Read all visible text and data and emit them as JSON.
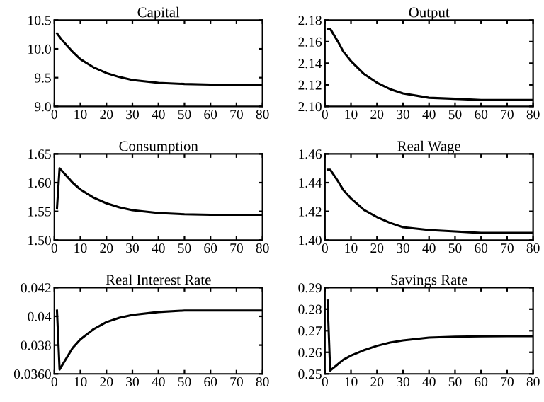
{
  "chart_data": [
    {
      "type": "line",
      "title": "Capital",
      "x": [
        1,
        3,
        5,
        7,
        10,
        15,
        20,
        25,
        30,
        40,
        50,
        60,
        70,
        80
      ],
      "series": [
        {
          "color": "#000000",
          "values": [
            10.27,
            10.15,
            10.05,
            9.95,
            9.82,
            9.68,
            9.58,
            9.51,
            9.46,
            9.41,
            9.39,
            9.38,
            9.37,
            9.37
          ]
        }
      ],
      "xlim": [
        0,
        80
      ],
      "xticks": [
        0,
        10,
        20,
        30,
        40,
        50,
        60,
        70,
        80
      ],
      "ylim": [
        9.0,
        10.5
      ],
      "yticks": [
        {
          "value": 9.0,
          "label": "9.0"
        },
        {
          "value": 9.5,
          "label": "9.5"
        },
        {
          "value": 10.0,
          "label": "10.0"
        },
        {
          "value": 10.5,
          "label": "10.5"
        }
      ],
      "grid": false,
      "marker": "none",
      "line_style": "solid"
    },
    {
      "type": "line",
      "title": "Output",
      "x": [
        1,
        2,
        5,
        7,
        10,
        15,
        20,
        25,
        30,
        40,
        50,
        60,
        70,
        80
      ],
      "series": [
        {
          "color": "#000000",
          "values": [
            2.172,
            2.172,
            2.16,
            2.151,
            2.142,
            2.13,
            2.122,
            2.116,
            2.112,
            2.108,
            2.107,
            2.106,
            2.106,
            2.106
          ]
        }
      ],
      "xlim": [
        0,
        80
      ],
      "xticks": [
        0,
        10,
        20,
        30,
        40,
        50,
        60,
        70,
        80
      ],
      "ylim": [
        2.1,
        2.18
      ],
      "yticks": [
        {
          "value": 2.1,
          "label": "2.10"
        },
        {
          "value": 2.12,
          "label": "2.12"
        },
        {
          "value": 2.14,
          "label": "2.14"
        },
        {
          "value": 2.16,
          "label": "2.16"
        },
        {
          "value": 2.18,
          "label": "2.18"
        }
      ],
      "grid": false,
      "marker": "none",
      "line_style": "solid"
    },
    {
      "type": "line",
      "title": "Consumption",
      "x": [
        1,
        2,
        5,
        7,
        10,
        15,
        20,
        25,
        30,
        40,
        50,
        60,
        70,
        80
      ],
      "series": [
        {
          "color": "#000000",
          "values": [
            1.555,
            1.625,
            1.61,
            1.6,
            1.588,
            1.574,
            1.564,
            1.557,
            1.552,
            1.547,
            1.545,
            1.544,
            1.544,
            1.544
          ]
        }
      ],
      "xlim": [
        0,
        80
      ],
      "xticks": [
        0,
        10,
        20,
        30,
        40,
        50,
        60,
        70,
        80
      ],
      "ylim": [
        1.5,
        1.65
      ],
      "yticks": [
        {
          "value": 1.5,
          "label": "1.50"
        },
        {
          "value": 1.55,
          "label": "1.55"
        },
        {
          "value": 1.6,
          "label": "1.60"
        },
        {
          "value": 1.65,
          "label": "1.65"
        }
      ],
      "grid": false,
      "marker": "none",
      "line_style": "solid"
    },
    {
      "type": "line",
      "title": "Real Wage",
      "x": [
        1,
        2,
        5,
        7,
        10,
        15,
        20,
        25,
        30,
        40,
        50,
        60,
        70,
        80
      ],
      "series": [
        {
          "color": "#000000",
          "values": [
            1.449,
            1.449,
            1.441,
            1.435,
            1.429,
            1.421,
            1.416,
            1.412,
            1.409,
            1.407,
            1.406,
            1.405,
            1.405,
            1.405
          ]
        }
      ],
      "xlim": [
        0,
        80
      ],
      "xticks": [
        0,
        10,
        20,
        30,
        40,
        50,
        60,
        70,
        80
      ],
      "ylim": [
        1.4,
        1.46
      ],
      "yticks": [
        {
          "value": 1.4,
          "label": "1.40"
        },
        {
          "value": 1.42,
          "label": "1.42"
        },
        {
          "value": 1.44,
          "label": "1.44"
        },
        {
          "value": 1.46,
          "label": "1.46"
        }
      ],
      "grid": false,
      "marker": "none",
      "line_style": "solid"
    },
    {
      "type": "line",
      "title": "Real Interest Rate",
      "x": [
        1,
        2,
        5,
        7,
        10,
        15,
        20,
        25,
        30,
        40,
        50,
        60,
        70,
        80
      ],
      "series": [
        {
          "color": "#000000",
          "values": [
            0.0404,
            0.0363,
            0.0372,
            0.0378,
            0.0384,
            0.0391,
            0.0396,
            0.0399,
            0.0401,
            0.0403,
            0.0404,
            0.0404,
            0.0404,
            0.0404
          ]
        }
      ],
      "xlim": [
        0,
        80
      ],
      "xticks": [
        0,
        10,
        20,
        30,
        40,
        50,
        60,
        70,
        80
      ],
      "ylim": [
        0.036,
        0.042
      ],
      "yticks": [
        {
          "value": 0.036,
          "label": "0.0360"
        },
        0.038,
        0.04,
        0.042
      ],
      "grid": false,
      "marker": "none",
      "line_style": "solid"
    },
    {
      "type": "line",
      "title": "Savings Rate",
      "x": [
        1,
        2,
        5,
        7,
        10,
        15,
        20,
        25,
        30,
        40,
        50,
        60,
        70,
        80
      ],
      "series": [
        {
          "color": "#000000",
          "values": [
            0.284,
            0.2515,
            0.2545,
            0.2565,
            0.2585,
            0.261,
            0.263,
            0.2645,
            0.2655,
            0.2668,
            0.2672,
            0.2674,
            0.2675,
            0.2675
          ]
        }
      ],
      "xlim": [
        0,
        80
      ],
      "xticks": [
        0,
        10,
        20,
        30,
        40,
        50,
        60,
        70,
        80
      ],
      "ylim": [
        0.25,
        0.29
      ],
      "yticks": [
        0.25,
        0.26,
        0.27,
        0.28,
        0.29
      ],
      "grid": false,
      "marker": "none",
      "line_style": "solid"
    }
  ]
}
